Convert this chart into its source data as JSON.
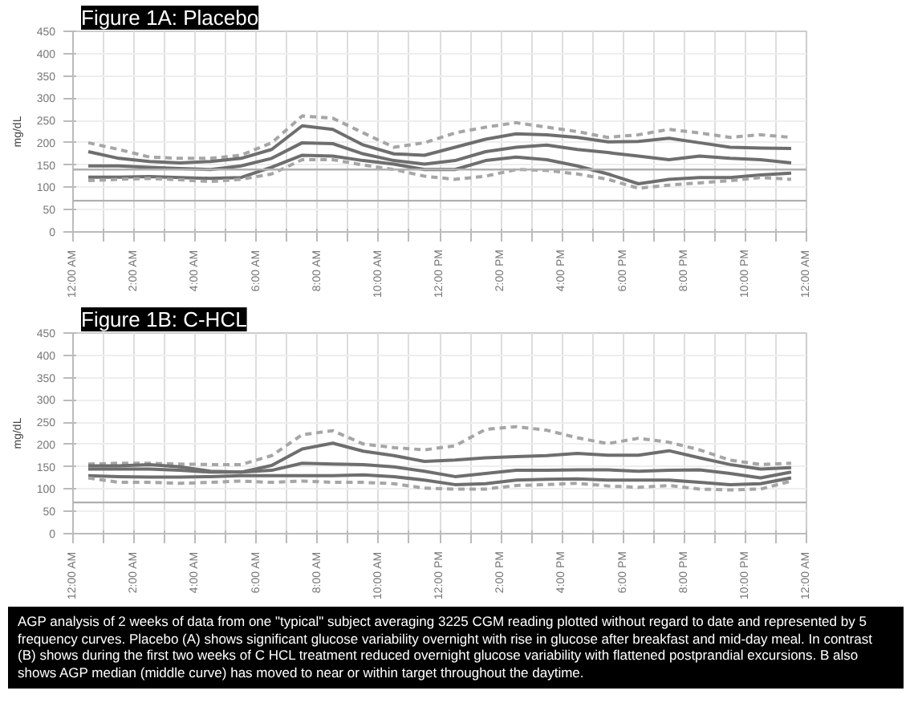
{
  "chart_data": [
    {
      "type": "line",
      "title": "Figure 1A: Placebo",
      "ylabel": "mg/dL",
      "x": [
        0.5,
        1.5,
        2.5,
        3.5,
        4.5,
        5.5,
        6.5,
        7.5,
        8.5,
        9.5,
        10.5,
        11.5,
        12.5,
        13.5,
        14.5,
        15.5,
        16.5,
        17.5,
        18.5,
        19.5,
        20.5,
        21.5,
        22.5,
        23.5
      ],
      "series": [
        {
          "color": "#a6a6a6",
          "line_style": "dashed",
          "values": [
            200,
            185,
            168,
            165,
            165,
            172,
            200,
            260,
            255,
            222,
            190,
            200,
            222,
            235,
            245,
            235,
            225,
            212,
            218,
            230,
            222,
            212,
            218,
            212
          ]
        },
        {
          "color": "#6e6e6e",
          "line_style": "solid",
          "values": [
            180,
            165,
            158,
            155,
            158,
            165,
            185,
            238,
            230,
            195,
            175,
            172,
            190,
            208,
            220,
            218,
            212,
            202,
            203,
            210,
            200,
            190,
            188,
            187
          ]
        },
        {
          "color": "#6e6e6e",
          "line_style": "solid",
          "values": [
            148,
            148,
            145,
            142,
            140,
            148,
            165,
            200,
            198,
            175,
            160,
            152,
            160,
            180,
            190,
            195,
            185,
            178,
            170,
            162,
            170,
            165,
            162,
            155
          ]
        },
        {
          "color": "#6e6e6e",
          "line_style": "solid",
          "values": [
            123,
            123,
            124,
            122,
            120,
            122,
            145,
            172,
            170,
            160,
            152,
            140,
            140,
            160,
            168,
            162,
            148,
            130,
            108,
            118,
            122,
            122,
            128,
            132
          ]
        },
        {
          "color": "#a6a6a6",
          "line_style": "dashed",
          "values": [
            115,
            118,
            120,
            117,
            113,
            118,
            130,
            162,
            162,
            150,
            140,
            125,
            118,
            125,
            140,
            138,
            130,
            118,
            98,
            105,
            110,
            115,
            122,
            118
          ]
        }
      ],
      "ref_lines": [
        {
          "axis": "y",
          "value": 70,
          "color": "#b0b0b0"
        },
        {
          "axis": "y",
          "value": 140,
          "color": "#b0b0b0"
        }
      ],
      "xlim": [
        0,
        24
      ],
      "ylim": [
        0,
        450
      ],
      "yticks": [
        0,
        50,
        100,
        150,
        200,
        250,
        300,
        350,
        400,
        450
      ],
      "xticks": [
        {
          "value": 0,
          "label": "12:00 AM"
        },
        {
          "value": 1,
          "label": null
        },
        {
          "value": 2,
          "label": "2:00 AM"
        },
        {
          "value": 3,
          "label": null
        },
        {
          "value": 4,
          "label": "4:00 AM"
        },
        {
          "value": 5,
          "label": null
        },
        {
          "value": 6,
          "label": "6:00 AM"
        },
        {
          "value": 7,
          "label": null
        },
        {
          "value": 8,
          "label": "8:00 AM"
        },
        {
          "value": 9,
          "label": null
        },
        {
          "value": 10,
          "label": "10:00 AM"
        },
        {
          "value": 11,
          "label": null
        },
        {
          "value": 12,
          "label": "12:00 PM"
        },
        {
          "value": 13,
          "label": null
        },
        {
          "value": 14,
          "label": "2:00 PM"
        },
        {
          "value": 15,
          "label": null
        },
        {
          "value": 16,
          "label": "4:00 PM"
        },
        {
          "value": 17,
          "label": null
        },
        {
          "value": 18,
          "label": "6:00 PM"
        },
        {
          "value": 19,
          "label": null
        },
        {
          "value": 20,
          "label": "8:00 PM"
        },
        {
          "value": 21,
          "label": null
        },
        {
          "value": 22,
          "label": "10:00 PM"
        },
        {
          "value": 23,
          "label": null
        },
        {
          "value": 24,
          "label": "12:00 AM"
        }
      ],
      "grid": true
    },
    {
      "type": "line",
      "title": "Figure 1B: C-HCL",
      "ylabel": "mg/dL",
      "x": [
        0.5,
        1.5,
        2.5,
        3.5,
        4.5,
        5.5,
        6.5,
        7.5,
        8.5,
        9.5,
        10.5,
        11.5,
        12.5,
        13.5,
        14.5,
        15.5,
        16.5,
        17.5,
        18.5,
        19.5,
        20.5,
        21.5,
        22.5,
        23.5
      ],
      "series": [
        {
          "color": "#a6a6a6",
          "line_style": "dashed",
          "values": [
            156,
            158,
            158,
            156,
            155,
            155,
            175,
            222,
            231,
            201,
            193,
            188,
            197,
            234,
            240,
            232,
            215,
            202,
            214,
            205,
            188,
            165,
            155,
            158
          ]
        },
        {
          "color": "#6e6e6e",
          "line_style": "solid",
          "values": [
            152,
            152,
            155,
            150,
            140,
            138,
            153,
            190,
            203,
            185,
            175,
            162,
            165,
            170,
            173,
            175,
            180,
            176,
            176,
            186,
            170,
            155,
            145,
            148
          ]
        },
        {
          "color": "#6e6e6e",
          "line_style": "solid",
          "values": [
            145,
            145,
            145,
            142,
            138,
            138,
            142,
            158,
            156,
            155,
            150,
            140,
            128,
            135,
            142,
            142,
            143,
            143,
            140,
            142,
            143,
            135,
            125,
            138
          ]
        },
        {
          "color": "#6e6e6e",
          "line_style": "solid",
          "values": [
            130,
            128,
            127,
            127,
            128,
            130,
            130,
            130,
            130,
            132,
            128,
            120,
            110,
            112,
            120,
            122,
            123,
            120,
            120,
            120,
            115,
            110,
            112,
            125
          ]
        },
        {
          "color": "#a6a6a6",
          "line_style": "dashed",
          "values": [
            125,
            115,
            115,
            113,
            115,
            118,
            115,
            118,
            115,
            115,
            112,
            102,
            100,
            100,
            108,
            110,
            113,
            107,
            104,
            108,
            100,
            98,
            100,
            118
          ]
        }
      ],
      "ref_lines": [
        {
          "axis": "y",
          "value": 70,
          "color": "#b0b0b0"
        }
      ],
      "xlim": [
        0,
        24
      ],
      "ylim": [
        0,
        450
      ],
      "yticks": [
        0,
        50,
        100,
        150,
        200,
        250,
        300,
        350,
        400,
        450
      ],
      "xticks": [
        {
          "value": 0,
          "label": "12:00 AM"
        },
        {
          "value": 1,
          "label": null
        },
        {
          "value": 2,
          "label": "2:00 AM"
        },
        {
          "value": 3,
          "label": null
        },
        {
          "value": 4,
          "label": "4:00 AM"
        },
        {
          "value": 5,
          "label": null
        },
        {
          "value": 6,
          "label": "6:00 AM"
        },
        {
          "value": 7,
          "label": null
        },
        {
          "value": 8,
          "label": "8:00 AM"
        },
        {
          "value": 9,
          "label": null
        },
        {
          "value": 10,
          "label": "10:00 AM"
        },
        {
          "value": 11,
          "label": null
        },
        {
          "value": 12,
          "label": "12:00 PM"
        },
        {
          "value": 13,
          "label": null
        },
        {
          "value": 14,
          "label": "2:00 PM"
        },
        {
          "value": 15,
          "label": null
        },
        {
          "value": 16,
          "label": "4:00 PM"
        },
        {
          "value": 17,
          "label": null
        },
        {
          "value": 18,
          "label": "6:00 PM"
        },
        {
          "value": 19,
          "label": null
        },
        {
          "value": 20,
          "label": "8:00 PM"
        },
        {
          "value": 21,
          "label": null
        },
        {
          "value": 22,
          "label": "10:00 PM"
        },
        {
          "value": 23,
          "label": null
        },
        {
          "value": 24,
          "label": "12:00 AM"
        }
      ],
      "grid": true,
      "annotations": [
        "AGP analysis of 2 weeks of data from one \"typical\" subject  averaging 3225 CGM reading plotted without regard to date and represented by 5 frequency curves. Placebo (A) shows significant glucose variability overnight with rise in glucose after breakfast and mid-day meal. In contrast (B) shows during the first two weeks of C HCL treatment reduced overnight glucose variability with flattened postprandial excursions. B also shows AGP median (middle curve) has moved to near or within target throughout the daytime."
      ]
    }
  ]
}
